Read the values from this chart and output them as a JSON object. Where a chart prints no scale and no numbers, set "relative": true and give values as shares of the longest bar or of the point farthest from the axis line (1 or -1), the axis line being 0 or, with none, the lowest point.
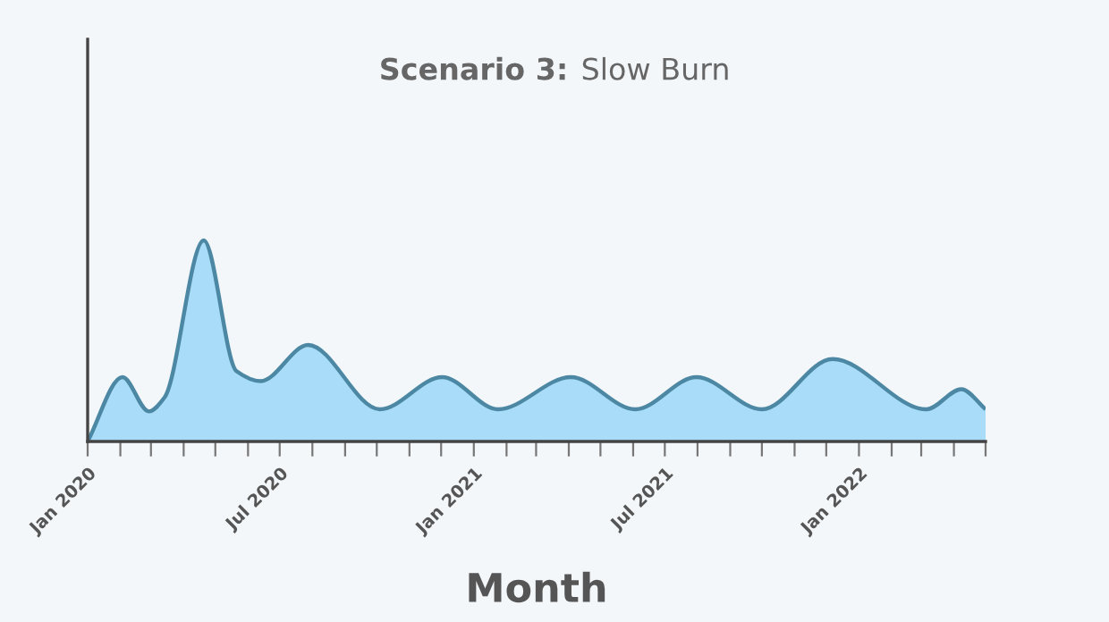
{
  "chart_data": {
    "type": "area",
    "title": "Scenario 3: Slow Burn",
    "xlabel": "Month",
    "relative": true,
    "x": [
      "2020-01-01",
      "2020-02-03",
      "2020-02-28",
      "2020-03-14",
      "2020-04-20",
      "2020-05-21",
      "2020-06-13",
      "2020-07-28",
      "2020-10-04",
      "2020-12-02",
      "2021-01-24",
      "2021-04-03",
      "2021-06-03",
      "2021-07-31",
      "2021-10-01",
      "2021-12-07",
      "2022-03-06",
      "2022-04-08",
      "2022-05-01"
    ],
    "series": [
      {
        "color": "#a9dcf8",
        "values": [
          0,
          0.32,
          0.15,
          0.22,
          1,
          0.35,
          0.3,
          0.48,
          0.16,
          0.32,
          0.16,
          0.32,
          0.16,
          0.32,
          0.16,
          0.41,
          0.16,
          0.26,
          0.16
        ]
      }
    ],
    "xlim": [
      "2020-01-01",
      "2022-05-01"
    ],
    "xticks": [
      {
        "value": "2020-01-01",
        "label": "Jan 2020"
      },
      {
        "value": "2020-02-01",
        "label": null
      },
      {
        "value": "2020-03-01",
        "label": null
      },
      {
        "value": "2020-04-01",
        "label": null
      },
      {
        "value": "2020-05-01",
        "label": null
      },
      {
        "value": "2020-06-01",
        "label": null
      },
      {
        "value": "2020-07-01",
        "label": "Jul 2020"
      },
      {
        "value": "2020-08-01",
        "label": null
      },
      {
        "value": "2020-09-01",
        "label": null
      },
      {
        "value": "2020-10-01",
        "label": null
      },
      {
        "value": "2020-11-01",
        "label": null
      },
      {
        "value": "2020-12-01",
        "label": null
      },
      {
        "value": "2021-01-01",
        "label": "Jan 2021"
      },
      {
        "value": "2021-02-01",
        "label": null
      },
      {
        "value": "2021-03-01",
        "label": null
      },
      {
        "value": "2021-04-01",
        "label": null
      },
      {
        "value": "2021-05-01",
        "label": null
      },
      {
        "value": "2021-06-01",
        "label": null
      },
      {
        "value": "2021-07-01",
        "label": "Jul 2021"
      },
      {
        "value": "2021-08-01",
        "label": null
      },
      {
        "value": "2021-09-01",
        "label": null
      },
      {
        "value": "2021-10-01",
        "label": null
      },
      {
        "value": "2021-11-01",
        "label": null
      },
      {
        "value": "2021-12-01",
        "label": null
      },
      {
        "value": "2022-01-01",
        "label": "Jan 2022"
      },
      {
        "value": "2022-02-01",
        "label": null
      },
      {
        "value": "2022-03-01",
        "label": null
      },
      {
        "value": "2022-04-01",
        "label": null
      },
      {
        "value": "2022-05-01",
        "label": null
      }
    ],
    "grid": false,
    "legend": false
  }
}
